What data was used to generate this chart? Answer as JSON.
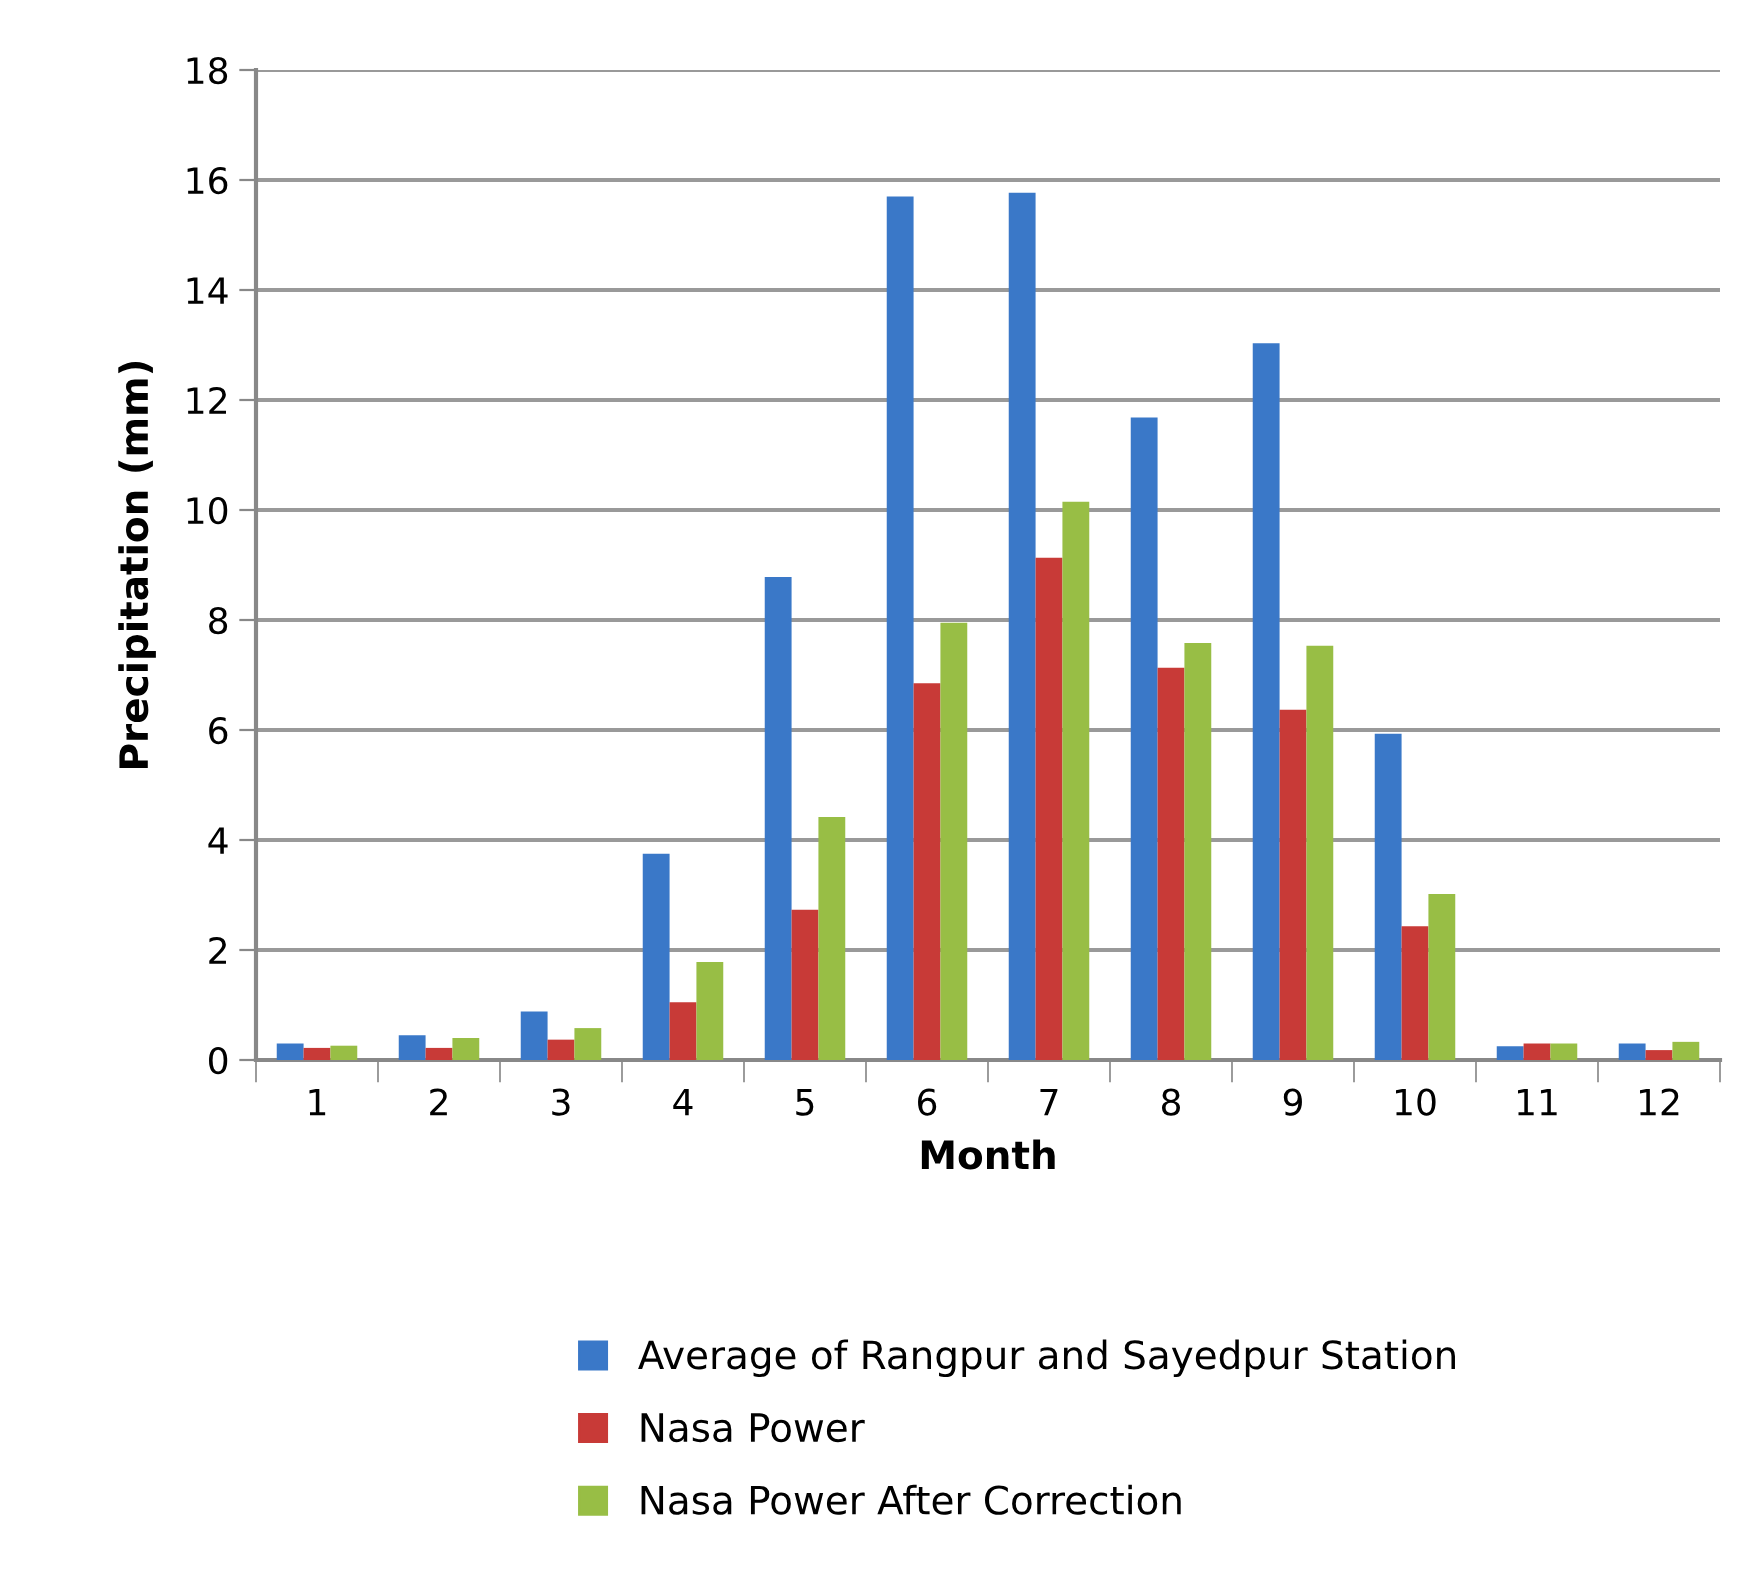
{
  "chart_data": {
    "type": "bar",
    "xlabel": "Month",
    "ylabel": "Precipitation (mm)",
    "categories": [
      "1",
      "2",
      "3",
      "4",
      "5",
      "6",
      "7",
      "8",
      "9",
      "10",
      "11",
      "12"
    ],
    "series": [
      {
        "name": "Average of Rangpur and Sayedpur Station",
        "color": "#3a78c8",
        "values": [
          0.3,
          0.45,
          0.88,
          3.75,
          8.78,
          15.7,
          15.77,
          11.68,
          13.03,
          5.93,
          0.25,
          0.3
        ]
      },
      {
        "name": "Nasa Power",
        "color": "#c83a37",
        "values": [
          0.22,
          0.22,
          0.37,
          1.05,
          2.73,
          6.85,
          9.13,
          7.13,
          6.37,
          2.43,
          0.3,
          0.18
        ]
      },
      {
        "name": "Nasa Power After Correction",
        "color": "#98be45",
        "values": [
          0.26,
          0.4,
          0.58,
          1.78,
          4.42,
          7.95,
          10.15,
          7.58,
          7.53,
          3.02,
          0.3,
          0.33
        ]
      }
    ],
    "ylim": [
      0,
      18
    ],
    "yticks": [
      0,
      2,
      4,
      6,
      8,
      10,
      12,
      14,
      16,
      18
    ],
    "grid": "y",
    "legend": "bottom"
  }
}
